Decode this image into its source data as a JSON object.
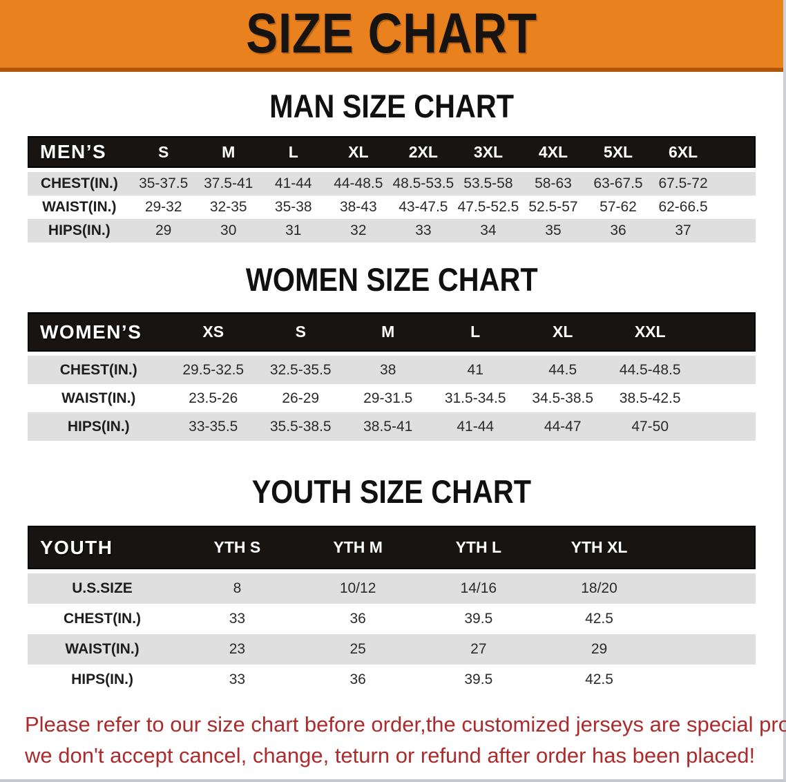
{
  "banner": {
    "title": "SIZE CHART",
    "bg_color": "#E8811E",
    "border_color": "#B05708"
  },
  "sections": [
    {
      "heading": "MAN SIZE CHART",
      "label": "MEN’S",
      "sizes": [
        "S",
        "M",
        "L",
        "XL",
        "2XL",
        "3XL",
        "4XL",
        "5XL",
        "6XL"
      ],
      "rows": [
        {
          "label": "CHEST(IN.)",
          "values": [
            "35-37.5",
            "37.5-41",
            "41-44",
            "44-48.5",
            "48.5-53.5",
            "53.5-58",
            "58-63",
            "63-67.5",
            "67.5-72"
          ]
        },
        {
          "label": "WAIST(IN.)",
          "values": [
            "29-32",
            "32-35",
            "35-38",
            "38-43",
            "43-47.5",
            "47.5-52.5",
            "52.5-57",
            "57-62",
            "62-66.5"
          ]
        },
        {
          "label": "HIPS(IN.)",
          "values": [
            "29",
            "30",
            "31",
            "32",
            "33",
            "34",
            "35",
            "36",
            "37"
          ]
        }
      ]
    },
    {
      "heading": "WOMEN SIZE CHART",
      "label": "WOMEN’S",
      "sizes": [
        "XS",
        "S",
        "M",
        "L",
        "XL",
        "XXL"
      ],
      "rows": [
        {
          "label": "CHEST(IN.)",
          "values": [
            "29.5-32.5",
            "32.5-35.5",
            "38",
            "41",
            "44.5",
            "44.5-48.5"
          ]
        },
        {
          "label": "WAIST(IN.)",
          "values": [
            "23.5-26",
            "26-29",
            "29-31.5",
            "31.5-34.5",
            "34.5-38.5",
            "38.5-42.5"
          ]
        },
        {
          "label": "HIPS(IN.)",
          "values": [
            "33-35.5",
            "35.5-38.5",
            "38.5-41",
            "41-44",
            "44-47",
            "47-50"
          ]
        }
      ]
    },
    {
      "heading": "YOUTH SIZE CHART",
      "label": "YOUTH",
      "sizes": [
        "YTH S",
        "YTH M",
        "YTH L",
        "YTH XL"
      ],
      "rows": [
        {
          "label": "U.S.SIZE",
          "values": [
            "8",
            "10/12",
            "14/16",
            "18/20"
          ]
        },
        {
          "label": "CHEST(IN.)",
          "values": [
            "33",
            "36",
            "39.5",
            "42.5"
          ]
        },
        {
          "label": "WAIST(IN.)",
          "values": [
            "23",
            "25",
            "27",
            "29"
          ]
        },
        {
          "label": "HIPS(IN.)",
          "values": [
            "33",
            "36",
            "39.5",
            "42.5"
          ]
        }
      ]
    }
  ],
  "footer": {
    "line1": "Please refer to our size chart before order,the customized jerseys are special products,",
    "line2": "we don't accept cancel, change, teturn or refund after order has been placed!",
    "color": "#AC2B2D"
  },
  "table_row_colors": {
    "stripe": "#DFDFDF",
    "header": "#171412"
  }
}
